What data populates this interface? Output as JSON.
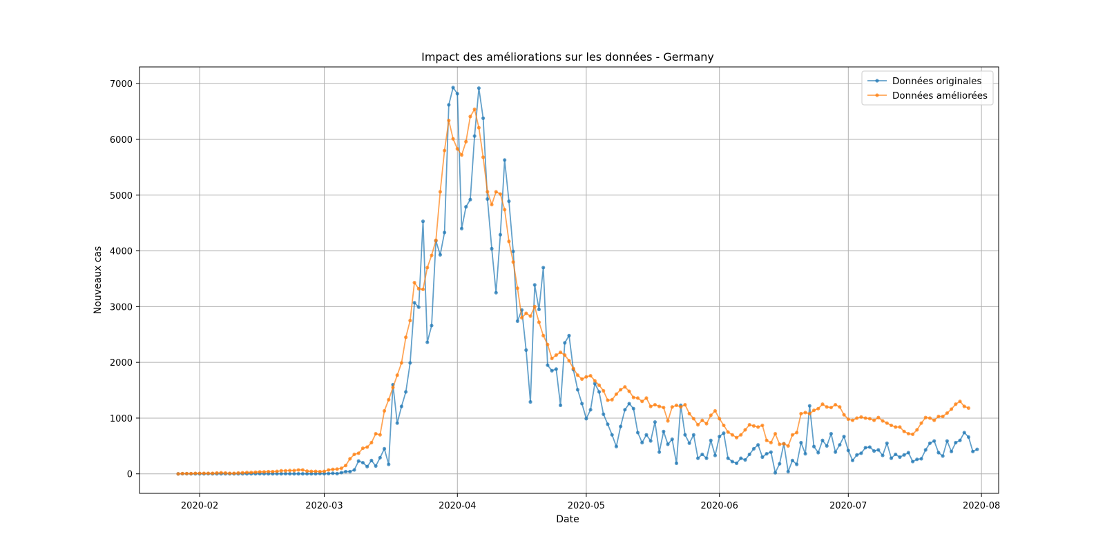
{
  "chart_data": {
    "type": "line",
    "title": "Impact des améliorations sur les données - Germany",
    "xlabel": "Date",
    "ylabel": "Nouveaux cas",
    "x_start": "2020-01-27",
    "x_end": "2020-07-27",
    "xlim": [
      "2020-01-18",
      "2020-08-05"
    ],
    "ylim": [
      -350,
      7300
    ],
    "x_ticks": [
      "2020-02-01",
      "2020-03-01",
      "2020-04-01",
      "2020-05-01",
      "2020-06-01",
      "2020-07-01",
      "2020-08-01"
    ],
    "x_tick_labels": [
      "2020-02",
      "2020-03",
      "2020-04",
      "2020-05",
      "2020-06",
      "2020-07",
      "2020-08"
    ],
    "y_ticks": [
      0,
      1000,
      2000,
      3000,
      4000,
      5000,
      6000,
      7000
    ],
    "y_tick_labels": [
      "0",
      "1000",
      "2000",
      "3000",
      "4000",
      "5000",
      "6000",
      "7000"
    ],
    "grid": true,
    "legend_position": "top-right",
    "series": [
      {
        "name": "Données originales",
        "color": "#1f77b4",
        "values": [
          0,
          2,
          2,
          1,
          1,
          1,
          1,
          2,
          1,
          1,
          1,
          1,
          1,
          1,
          1,
          1,
          1,
          1,
          1,
          2,
          1,
          1,
          1,
          1,
          1,
          2,
          1,
          1,
          1,
          1,
          1,
          1,
          1,
          5,
          3,
          4,
          11,
          4,
          22,
          40,
          40,
          70,
          230,
          200,
          130,
          240,
          140,
          290,
          450,
          170,
          1600,
          910,
          1210,
          1470,
          1990,
          3070,
          2990,
          4530,
          2360,
          2660,
          4180,
          3930,
          4330,
          6620,
          6930,
          6820,
          4400,
          4790,
          4920,
          6060,
          6920,
          6380,
          4930,
          4040,
          3250,
          4290,
          5630,
          4890,
          3990,
          2740,
          2940,
          2220,
          1290,
          3390,
          2950,
          3700,
          1950,
          1850,
          1880,
          1230,
          2350,
          2480,
          1870,
          1510,
          1260,
          990,
          1150,
          1620,
          1470,
          1070,
          890,
          700,
          490,
          850,
          1150,
          1260,
          1170,
          740,
          560,
          700,
          590,
          930,
          390,
          760,
          530,
          620,
          190,
          1230,
          700,
          550,
          700,
          280,
          350,
          280,
          600,
          330,
          670,
          730,
          280,
          220,
          190,
          280,
          250,
          350,
          450,
          520,
          300,
          360,
          390,
          20,
          180,
          540,
          40,
          240,
          170,
          560,
          360,
          1220,
          490,
          380,
          600,
          500,
          720,
          390,
          520,
          670,
          420,
          240,
          340,
          370,
          470,
          480,
          410,
          430,
          330,
          550,
          280,
          350,
          300,
          340,
          380,
          220,
          260,
          270,
          430,
          550,
          590,
          380,
          320,
          590,
          400,
          560,
          600,
          740,
          660,
          400,
          440
        ]
      },
      {
        "name": "Données améliorées",
        "color": "#ff7f0e",
        "values": [
          0,
          5,
          5,
          5,
          10,
          10,
          10,
          10,
          10,
          15,
          20,
          15,
          10,
          10,
          15,
          20,
          25,
          25,
          30,
          35,
          35,
          40,
          40,
          45,
          55,
          55,
          60,
          60,
          70,
          70,
          50,
          45,
          45,
          40,
          45,
          70,
          80,
          85,
          100,
          150,
          270,
          350,
          370,
          460,
          480,
          560,
          720,
          700,
          1130,
          1330,
          1550,
          1770,
          1990,
          2450,
          2750,
          3430,
          3320,
          3310,
          3700,
          3920,
          4190,
          5060,
          5800,
          6340,
          6010,
          5830,
          5720,
          5960,
          6410,
          6540,
          6210,
          5680,
          5060,
          4830,
          5060,
          5020,
          4740,
          4170,
          3800,
          3330,
          2800,
          2880,
          2830,
          3000,
          2720,
          2480,
          2320,
          2070,
          2130,
          2180,
          2130,
          2030,
          1890,
          1770,
          1700,
          1740,
          1760,
          1670,
          1590,
          1490,
          1320,
          1330,
          1430,
          1510,
          1560,
          1480,
          1370,
          1360,
          1300,
          1360,
          1210,
          1240,
          1210,
          1190,
          950,
          1200,
          1230,
          1200,
          1240,
          1080,
          990,
          880,
          960,
          900,
          1050,
          1130,
          990,
          870,
          750,
          700,
          650,
          700,
          790,
          880,
          860,
          840,
          870,
          600,
          560,
          720,
          530,
          540,
          500,
          700,
          740,
          1080,
          1100,
          1080,
          1140,
          1170,
          1250,
          1200,
          1190,
          1240,
          1200,
          1060,
          980,
          960,
          1000,
          1020,
          1000,
          990,
          960,
          1010,
          950,
          910,
          870,
          840,
          840,
          760,
          720,
          710,
          790,
          910,
          1010,
          1000,
          960,
          1030,
          1030,
          1090,
          1160,
          1250,
          1300,
          1210,
          1180
        ]
      }
    ]
  }
}
